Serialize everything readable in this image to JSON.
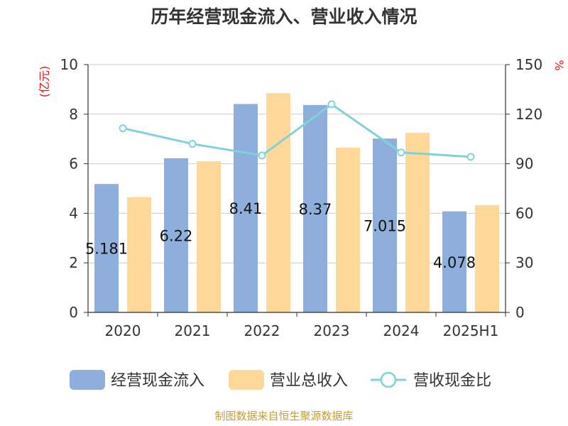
{
  "chart_data": {
    "type": "bar",
    "title": "历年经营现金流入、营业收入情况",
    "y_left_label": "(亿元)",
    "y_right_label": "%",
    "categories": [
      "2020",
      "2021",
      "2022",
      "2023",
      "2024",
      "2025H1"
    ],
    "series": [
      {
        "name": "经营现金流入",
        "type": "bar",
        "axis": "left",
        "values": [
          5.181,
          6.22,
          8.41,
          8.37,
          7.015,
          4.078
        ],
        "labels": [
          "5.181",
          "6.22",
          "8.41",
          "8.37",
          "7.015",
          "4.078"
        ]
      },
      {
        "name": "营业总收入",
        "type": "bar",
        "axis": "left",
        "values": [
          4.65,
          6.1,
          8.85,
          6.65,
          7.25,
          4.33
        ]
      },
      {
        "name": "营收现金比",
        "type": "line",
        "axis": "right",
        "values": [
          111.5,
          102.0,
          95.0,
          126.0,
          96.8,
          94.2
        ]
      }
    ],
    "y_left": {
      "min": 0,
      "max": 10,
      "ticks": [
        "0",
        "2",
        "4",
        "6",
        "8",
        "10"
      ]
    },
    "y_right": {
      "min": 0,
      "max": 150,
      "ticks": [
        "0",
        "30",
        "60",
        "90",
        "120",
        "150"
      ]
    },
    "grid": true,
    "legend_position": "bottom",
    "colors": {
      "cash_inflow": "#8eaedb",
      "revenue": "#fed899",
      "ratio": "#80d2d6",
      "title": "#333333",
      "axis_unit": "#e01414",
      "source": "#c29c36"
    }
  },
  "source_text": "制图数据来自恒生聚源数据库"
}
